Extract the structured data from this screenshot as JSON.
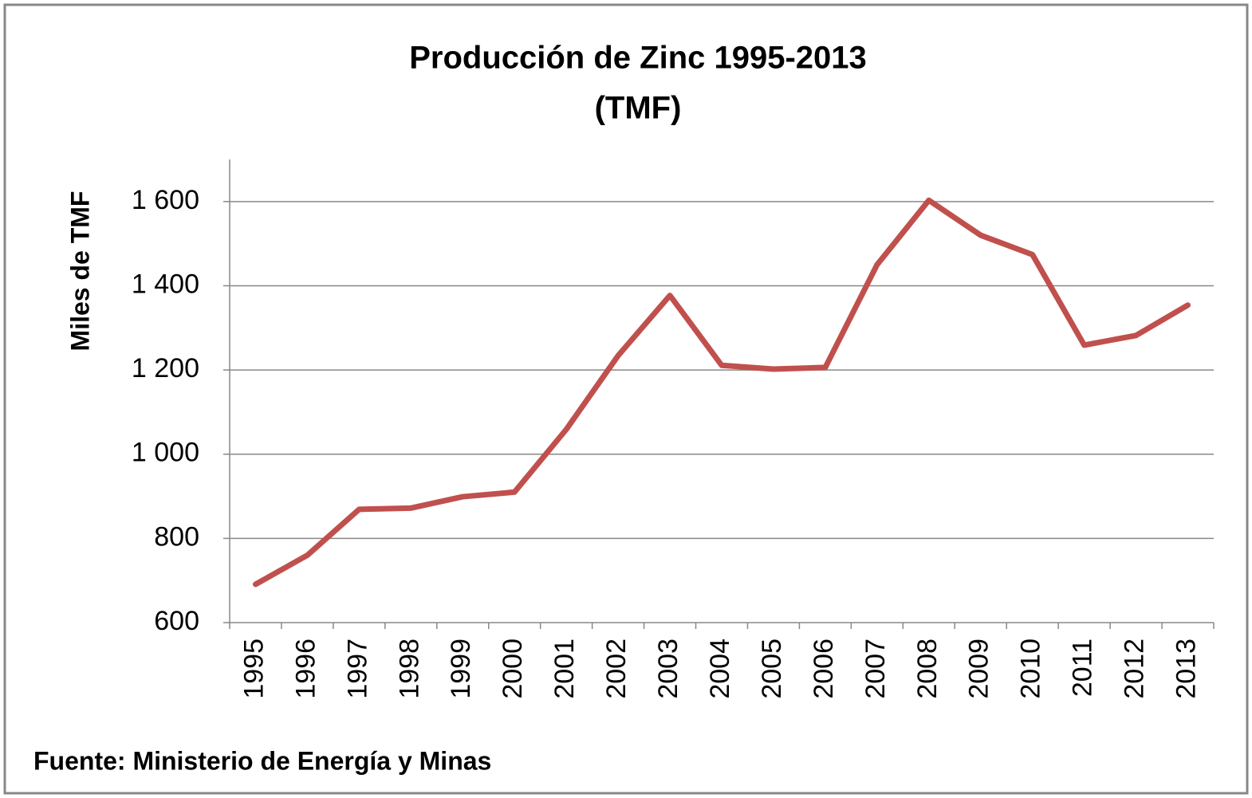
{
  "chart_data": {
    "type": "line",
    "title": "Producción de Zinc 1995-2013",
    "subtitle": "(TMF)",
    "y_label": "Miles de TMF",
    "source": "Fuente: Ministerio de Energía y Minas",
    "categories": [
      "1995",
      "1996",
      "1997",
      "1998",
      "1999",
      "2000",
      "2001",
      "2002",
      "2003",
      "2004",
      "2005",
      "2006",
      "2007",
      "2008",
      "2009",
      "2010",
      "2011",
      "2012",
      "2013"
    ],
    "series": [
      {
        "name": "Zinc",
        "color": "#c0504d",
        "values": [
          691,
          760,
          869,
          872,
          899,
          910,
          1059,
          1234,
          1377,
          1211,
          1202,
          1206,
          1450,
          1603,
          1520,
          1474,
          1259,
          1282,
          1354
        ]
      }
    ],
    "ylim": [
      600,
      1700
    ],
    "yticks": [
      600,
      800,
      {
        "value": 1000,
        "label": "1 000"
      },
      {
        "value": 1200,
        "label": "1 200"
      },
      {
        "value": 1400,
        "label": "1 400"
      },
      {
        "value": 1600,
        "label": "1 600"
      }
    ],
    "grid": true
  }
}
